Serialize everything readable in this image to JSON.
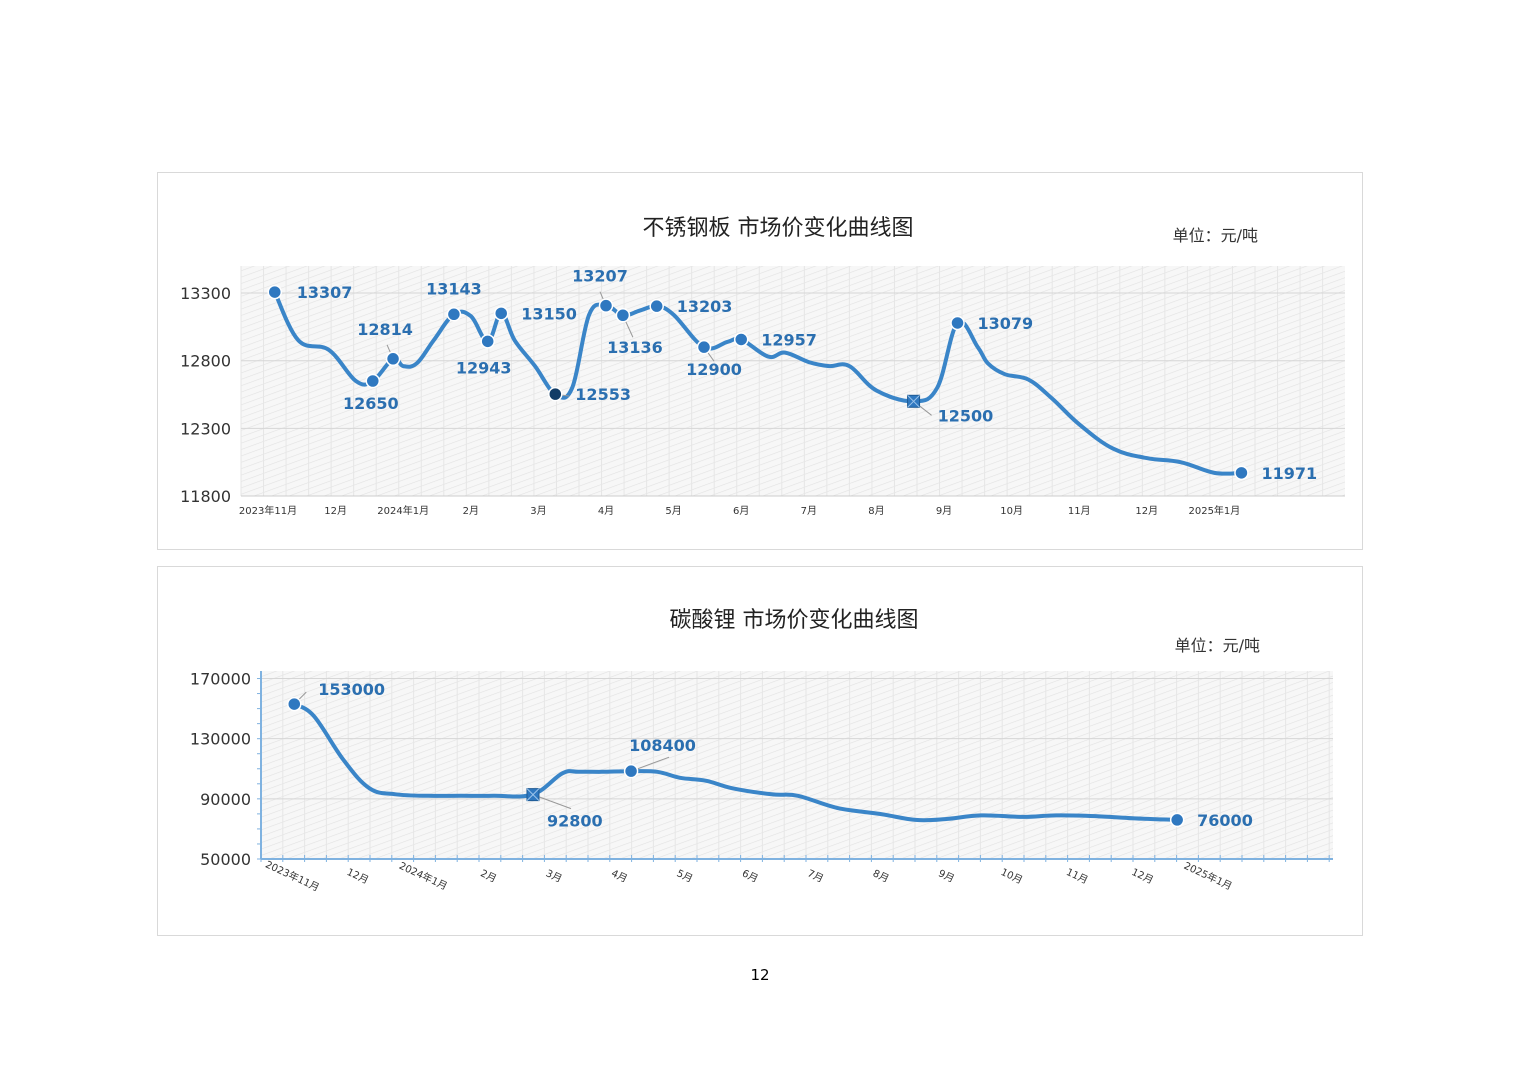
{
  "page_number": "12",
  "chart_data": [
    {
      "type": "line",
      "title": "不锈钢板 市场价变化曲线图",
      "unit": "单位：元/吨",
      "ylim": [
        11800,
        13500
      ],
      "yticks": [
        11800,
        12300,
        12800,
        13300
      ],
      "grid": true,
      "color": "#3a85c8",
      "label_color": "#2b6fb0",
      "x_tick_labels": [
        "2023年11月",
        "12月",
        "2024年1月",
        "2月",
        "3月",
        "4月",
        "5月",
        "6月",
        "7月",
        "8月",
        "9月",
        "10月",
        "11月",
        "12月",
        "2025年1月"
      ],
      "series": [
        {
          "x": [
            0.1,
            0.45,
            0.9,
            1.3,
            1.55,
            1.85,
            2.0,
            2.2,
            2.45,
            2.75,
            3.0,
            3.25,
            3.45,
            3.65,
            3.95,
            4.25,
            4.5,
            4.75,
            5.0,
            5.25,
            5.5,
            5.75,
            6.0,
            6.45,
            6.8,
            7.0,
            7.4,
            7.65,
            8.0,
            8.3,
            8.6,
            9.0,
            9.55,
            9.9,
            10.2,
            10.5,
            10.65,
            10.9,
            11.25,
            11.6,
            12.0,
            12.5,
            13.0,
            13.5,
            14.0,
            14.4
          ],
          "values": [
            13307,
            12950,
            12880,
            12650,
            12650,
            12814,
            12760,
            12780,
            12950,
            13143,
            13130,
            12943,
            13150,
            12950,
            12760,
            12553,
            12600,
            13140,
            13207,
            13136,
            13170,
            13203,
            13140,
            12900,
            12940,
            12957,
            12830,
            12860,
            12790,
            12760,
            12760,
            12580,
            12500,
            12600,
            13079,
            12900,
            12780,
            12700,
            12660,
            12520,
            12330,
            12150,
            12080,
            12050,
            11971,
            11971
          ]
        }
      ],
      "markers": [
        {
          "x": 0.1,
          "value": 13307,
          "label": "13307",
          "shape": "circle"
        },
        {
          "x": 1.55,
          "value": 12650,
          "label": "12650",
          "shape": "circle"
        },
        {
          "x": 1.85,
          "value": 12814,
          "label": "12814",
          "shape": "circle"
        },
        {
          "x": 2.75,
          "value": 13143,
          "label": "13143",
          "shape": "circle"
        },
        {
          "x": 3.25,
          "value": 12943,
          "label": "12943",
          "shape": "circle"
        },
        {
          "x": 3.45,
          "value": 13150,
          "label": "13150",
          "shape": "circle"
        },
        {
          "x": 4.25,
          "value": 12553,
          "label": "12553",
          "shape": "circle-dark"
        },
        {
          "x": 5.0,
          "value": 13207,
          "label": "13207",
          "shape": "circle"
        },
        {
          "x": 5.25,
          "value": 13136,
          "label": "13136",
          "shape": "circle"
        },
        {
          "x": 5.75,
          "value": 13203,
          "label": "13203",
          "shape": "circle"
        },
        {
          "x": 6.45,
          "value": 12900,
          "label": "12900",
          "shape": "circle"
        },
        {
          "x": 7.0,
          "value": 12957,
          "label": "12957",
          "shape": "circle"
        },
        {
          "x": 9.55,
          "value": 12500,
          "label": "12500",
          "shape": "square"
        },
        {
          "x": 10.2,
          "value": 13079,
          "label": "13079",
          "shape": "circle"
        },
        {
          "x": 14.4,
          "value": 11971,
          "label": "11971",
          "shape": "circle"
        }
      ]
    },
    {
      "type": "line",
      "title": "碳酸锂 市场价变化曲线图",
      "unit": "单位：元/吨",
      "ylim": [
        50000,
        175000
      ],
      "yticks": [
        50000,
        90000,
        130000,
        170000
      ],
      "grid": true,
      "color": "#3a85c8",
      "label_color": "#2b6fb0",
      "x_tick_labels": [
        "2023年11月",
        "12月",
        "2024年1月",
        "2月",
        "3月",
        "4月",
        "5月",
        "6月",
        "7月",
        "8月",
        "9月",
        "10月",
        "11月",
        "12月",
        "2025年1月"
      ],
      "series": [
        {
          "x": [
            0.05,
            0.35,
            0.8,
            1.2,
            1.6,
            2.1,
            2.6,
            3.1,
            3.7,
            4.15,
            4.4,
            4.75,
            5.2,
            5.6,
            5.95,
            6.35,
            6.75,
            7.35,
            7.75,
            8.35,
            9.0,
            9.55,
            10.0,
            10.55,
            11.2,
            11.7,
            12.3,
            12.9,
            13.55
          ],
          "values": [
            153000,
            145000,
            116000,
            97000,
            93000,
            92000,
            92000,
            92000,
            93000,
            107000,
            108000,
            108000,
            108400,
            108000,
            104000,
            102000,
            97000,
            93000,
            92000,
            84000,
            80000,
            76000,
            76500,
            79000,
            78000,
            79000,
            78500,
            77000,
            76000
          ]
        }
      ],
      "markers": [
        {
          "x": 0.05,
          "value": 153000,
          "label": "153000",
          "shape": "circle"
        },
        {
          "x": 3.7,
          "value": 92800,
          "label": "92800",
          "shape": "square"
        },
        {
          "x": 5.2,
          "value": 108400,
          "label": "108400",
          "shape": "circle"
        },
        {
          "x": 13.55,
          "value": 76000,
          "label": "76000",
          "shape": "circle"
        }
      ]
    }
  ]
}
